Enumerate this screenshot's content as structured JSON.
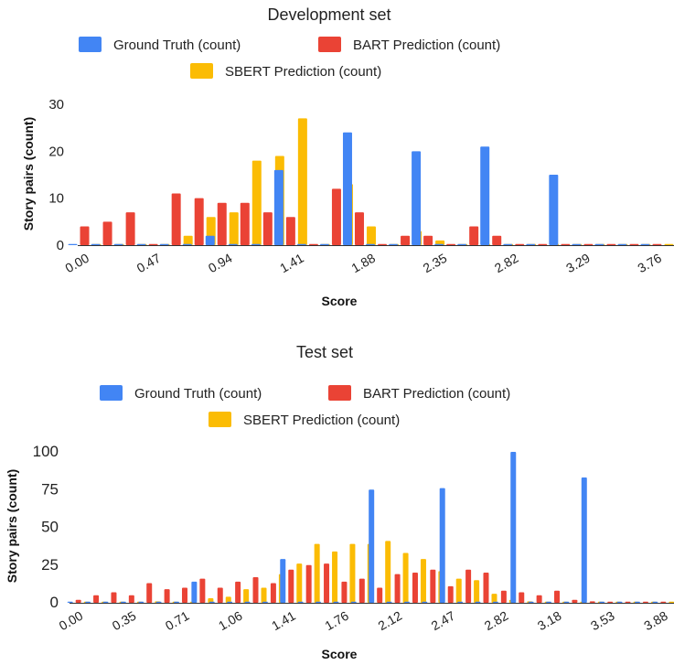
{
  "colors": {
    "ground_truth": "#4285F4",
    "bart": "#EA4335",
    "sbert": "#FBBC04"
  },
  "chart_data": [
    {
      "type": "bar",
      "title": "Development set",
      "xlabel": "Score",
      "ylabel": "Story pairs (count)",
      "ylim": [
        0,
        30
      ],
      "yticks": [
        0,
        10,
        20,
        30
      ],
      "xtick_labels": [
        "0.00",
        "0.47",
        "0.94",
        "1.41",
        "1.88",
        "2.35",
        "2.82",
        "3.29",
        "3.76"
      ],
      "legend": [
        "Ground Truth (count)",
        "BART Prediction (count)",
        "SBERT Prediction (count)"
      ],
      "legend_position": "top",
      "grid": false,
      "categories": [
        "0.00",
        "0.16",
        "0.31",
        "0.47",
        "0.63",
        "0.78",
        "0.94",
        "1.10",
        "1.25",
        "1.41",
        "1.57",
        "1.72",
        "1.88",
        "2.04",
        "2.19",
        "2.35",
        "2.51",
        "2.66",
        "2.82",
        "2.98",
        "3.13",
        "3.29",
        "3.45",
        "3.60",
        "3.76",
        "3.92"
      ],
      "series": [
        {
          "name": "Ground Truth (count)",
          "values": [
            0,
            0,
            0,
            0,
            0,
            0,
            2,
            0,
            0,
            16,
            0,
            0,
            24,
            0,
            0,
            20,
            0,
            0,
            21,
            0,
            0,
            15,
            0,
            0,
            0,
            0
          ]
        },
        {
          "name": "BART Prediction (count)",
          "values": [
            4,
            5,
            7,
            0,
            11,
            10,
            9,
            9,
            7,
            6,
            0,
            12,
            7,
            0,
            2,
            2,
            0,
            4,
            2,
            0,
            0,
            0,
            0,
            0,
            0,
            0
          ]
        },
        {
          "name": "SBERT Prediction (count)",
          "values": [
            0,
            0,
            0,
            0,
            2,
            6,
            7,
            18,
            19,
            27,
            0,
            13,
            4,
            0,
            3,
            1,
            0,
            0,
            0,
            0,
            0,
            0,
            0,
            0,
            0,
            0
          ]
        }
      ]
    },
    {
      "type": "bar",
      "title": "Test set",
      "xlabel": "Score",
      "ylabel": "Story pairs (count)",
      "ylim": [
        0,
        100
      ],
      "yticks": [
        0,
        25,
        50,
        75,
        100
      ],
      "xtick_labels": [
        "0.00",
        "0.35",
        "0.71",
        "1.06",
        "1.41",
        "1.76",
        "2.12",
        "2.47",
        "2.82",
        "3.18",
        "3.53",
        "3.88"
      ],
      "legend": [
        "Ground Truth (count)",
        "BART Prediction (count)",
        "SBERT Prediction (count)"
      ],
      "legend_position": "top",
      "grid": false,
      "categories": [
        "0.00",
        "0.12",
        "0.24",
        "0.35",
        "0.47",
        "0.59",
        "0.71",
        "0.82",
        "0.94",
        "1.06",
        "1.18",
        "1.29",
        "1.41",
        "1.53",
        "1.65",
        "1.76",
        "1.88",
        "2.00",
        "2.12",
        "2.24",
        "2.35",
        "2.47",
        "2.59",
        "2.71",
        "2.82",
        "2.94",
        "3.06",
        "3.18",
        "3.29",
        "3.41",
        "3.53",
        "3.65",
        "3.76",
        "3.88"
      ],
      "series": [
        {
          "name": "Ground Truth (count)",
          "values": [
            0,
            0,
            0,
            0,
            0,
            0,
            0,
            14,
            0,
            0,
            0,
            0,
            29,
            0,
            0,
            0,
            0,
            75,
            0,
            0,
            0,
            76,
            0,
            0,
            0,
            100,
            0,
            0,
            0,
            83,
            0,
            0,
            0,
            0
          ]
        },
        {
          "name": "BART Prediction (count)",
          "values": [
            2,
            5,
            7,
            5,
            13,
            9,
            10,
            16,
            10,
            14,
            17,
            13,
            22,
            25,
            26,
            14,
            16,
            10,
            19,
            20,
            22,
            11,
            22,
            20,
            8,
            7,
            5,
            8,
            2,
            1,
            0,
            0,
            0,
            0
          ]
        },
        {
          "name": "SBERT Prediction (count)",
          "values": [
            0,
            0,
            0,
            0,
            1,
            0,
            0,
            3,
            4,
            9,
            10,
            19,
            26,
            39,
            34,
            39,
            39,
            41,
            33,
            29,
            21,
            16,
            15,
            6,
            2,
            1,
            0,
            0,
            0,
            0,
            0,
            0,
            0,
            0
          ]
        }
      ]
    }
  ]
}
